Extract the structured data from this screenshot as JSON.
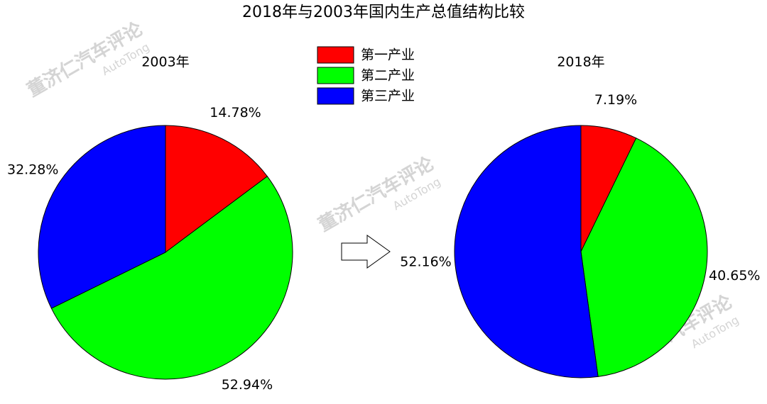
{
  "title": "2018年与2003年国内生产总值结构比较",
  "categories": [
    "第一产业",
    "第二产业",
    "第三产业"
  ],
  "colors": [
    "#ff0000",
    "#00ff00",
    "#0000ff"
  ],
  "watermark": {
    "name": "董济仁汽车评论",
    "sub": "AutoTong"
  },
  "chart_data": [
    {
      "type": "pie",
      "title": "2003年",
      "values": [
        14.78,
        52.94,
        32.28
      ],
      "value_labels": [
        "14.78%",
        "52.94%",
        "32.28%"
      ]
    },
    {
      "type": "pie",
      "title": "2018年",
      "values": [
        7.19,
        40.65,
        52.16
      ],
      "value_labels": [
        "7.19%",
        "40.65%",
        "52.16%"
      ]
    }
  ]
}
